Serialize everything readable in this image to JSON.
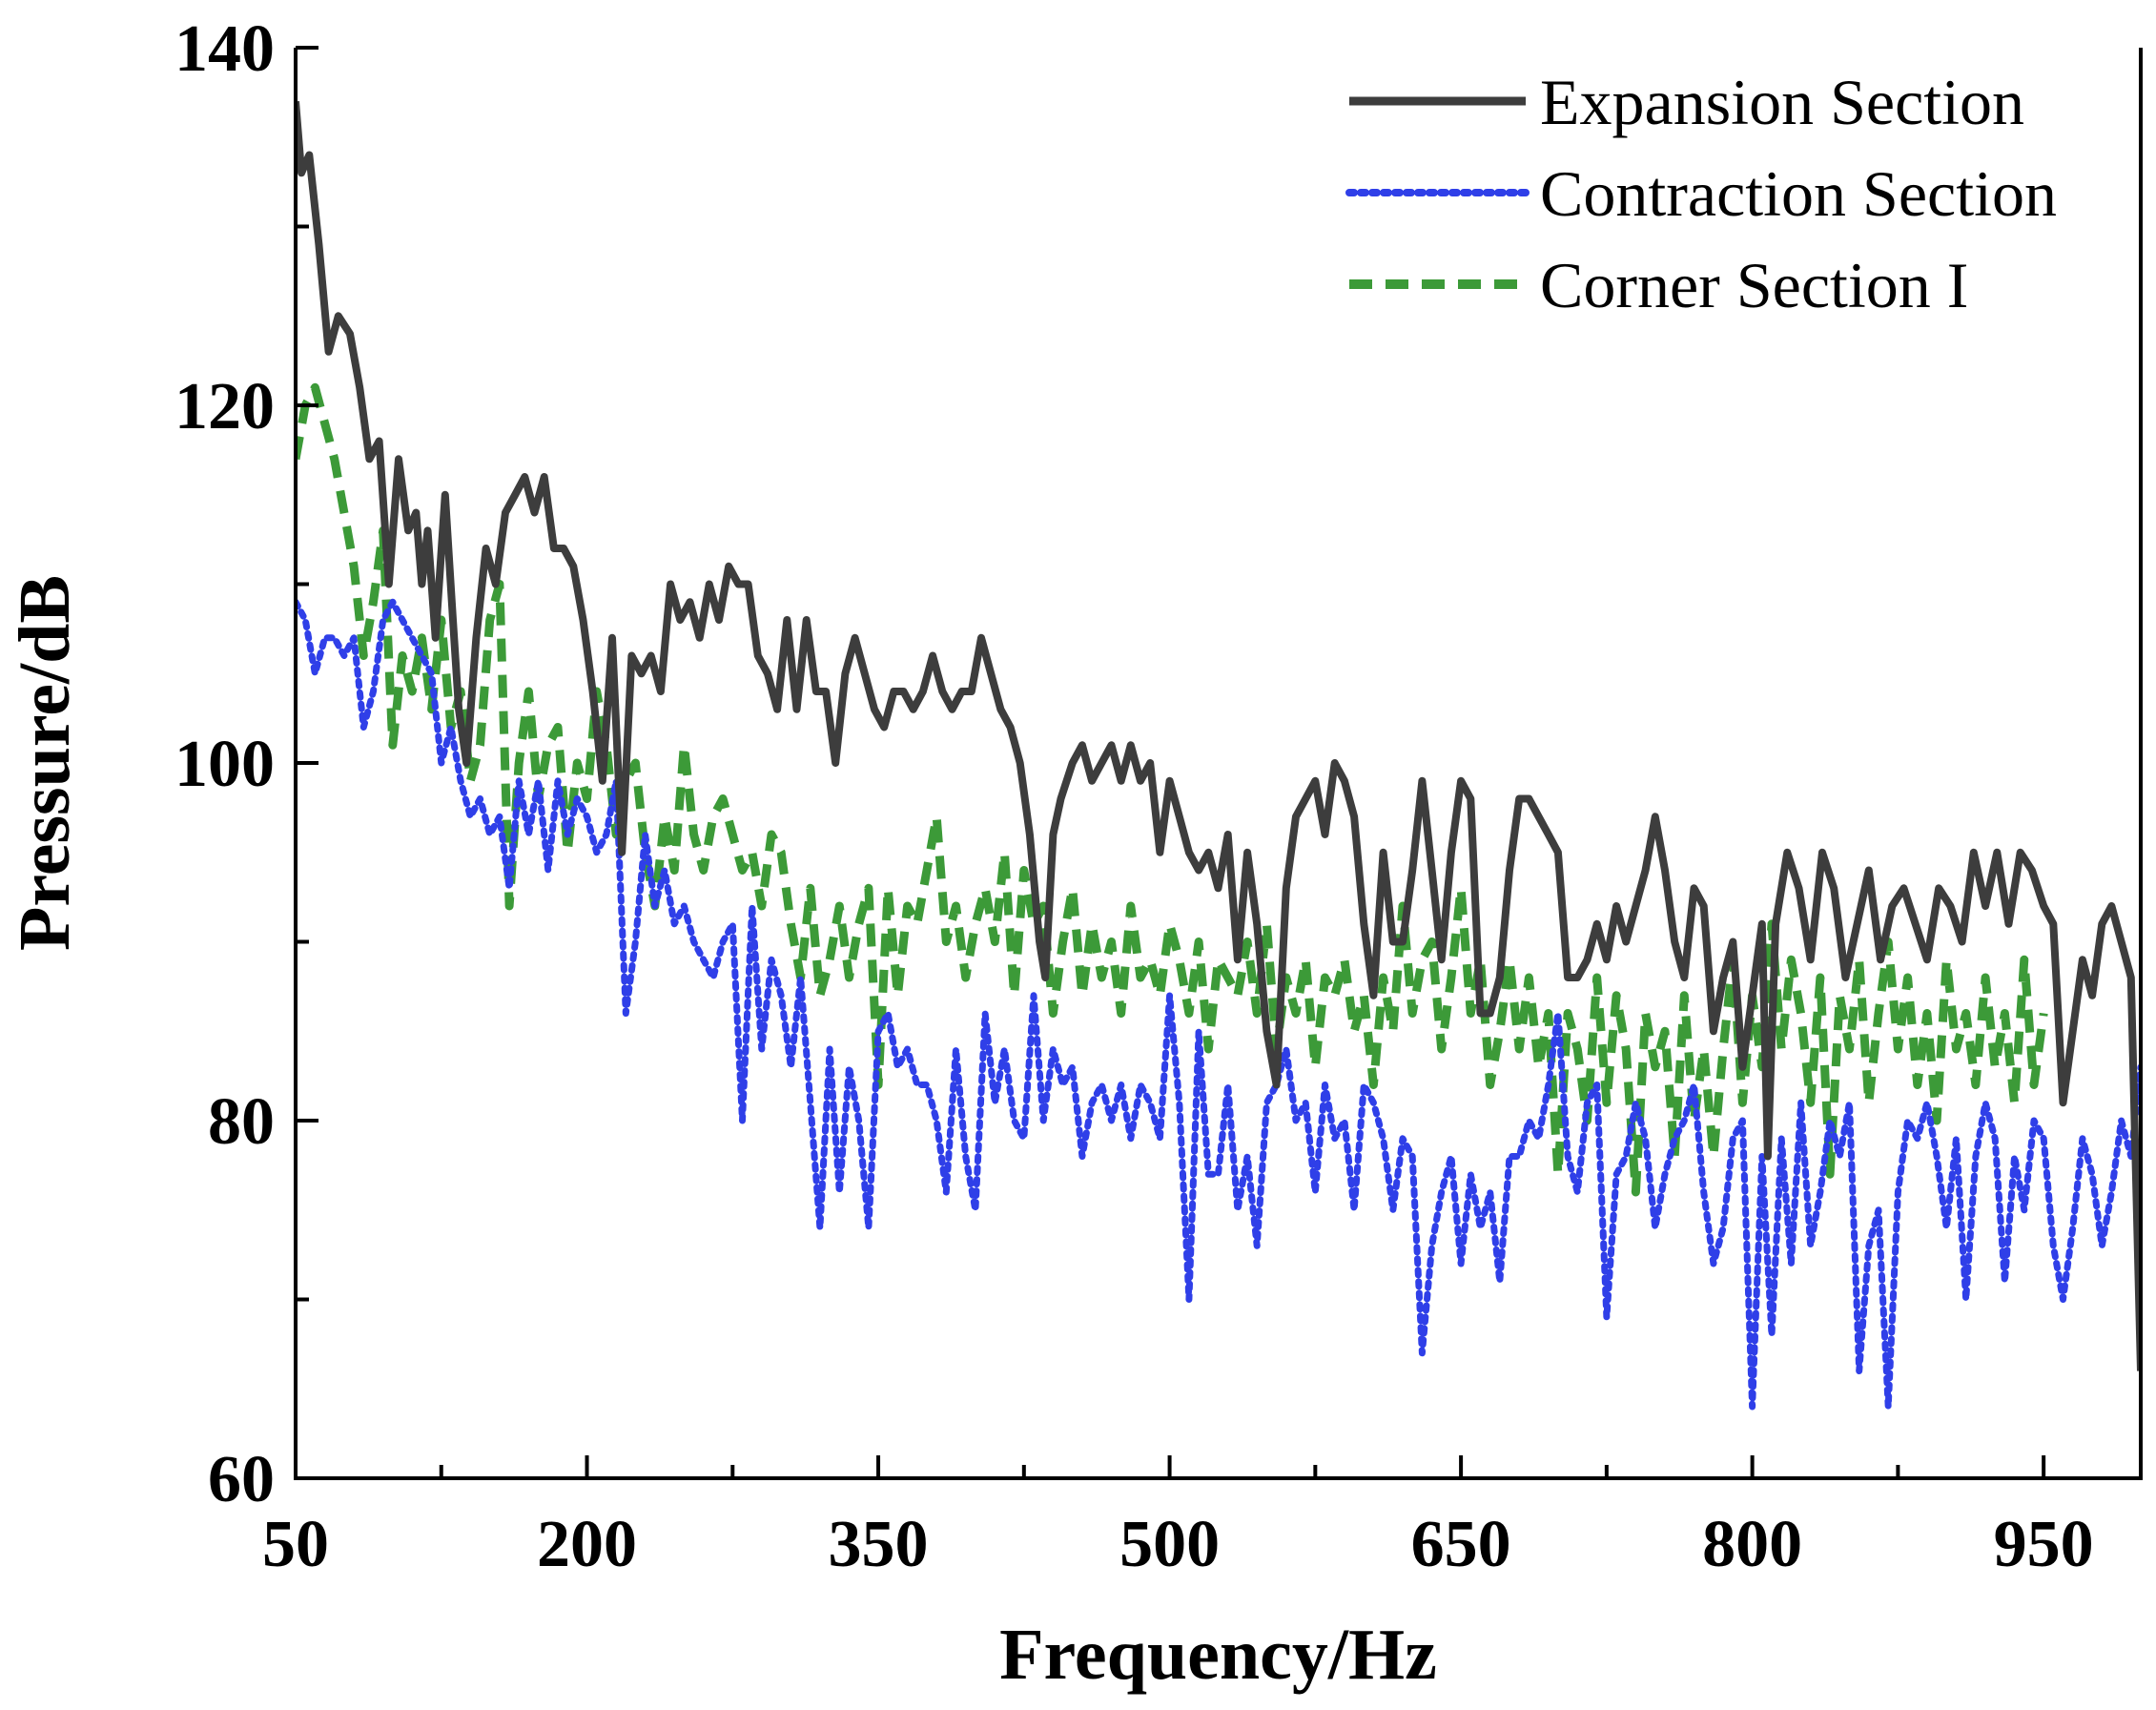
{
  "chart_data": {
    "type": "line",
    "title": "",
    "xlabel": "Frequency/Hz",
    "ylabel": "Pressure/dB",
    "xlim": [
      50,
      1000
    ],
    "ylim": [
      60,
      140
    ],
    "x_ticks": [
      50,
      200,
      350,
      500,
      650,
      800,
      950
    ],
    "x_minor_ticks": [
      125,
      275,
      425,
      575,
      725,
      875
    ],
    "y_ticks": [
      60,
      80,
      100,
      120,
      140
    ],
    "y_minor_ticks": [
      70,
      90,
      110,
      130
    ],
    "grid": false,
    "legend_position": "top-right",
    "series": [
      {
        "name": "Expansion Section",
        "color": "#3d3d3d",
        "style": "solid",
        "x": [
          50,
          53,
          57,
          62,
          67,
          72,
          78,
          83,
          88,
          93,
          98,
          103,
          108,
          112,
          115,
          118,
          122,
          127,
          131,
          134,
          138,
          143,
          148,
          153,
          158,
          163,
          168,
          173,
          178,
          183,
          188,
          193,
          198,
          203,
          208,
          213,
          218,
          223,
          228,
          233,
          238,
          243,
          248,
          253,
          258,
          263,
          268,
          273,
          278,
          283,
          288,
          293,
          298,
          303,
          308,
          313,
          318,
          323,
          328,
          333,
          338,
          343,
          348,
          353,
          358,
          363,
          368,
          373,
          378,
          383,
          388,
          393,
          398,
          403,
          408,
          413,
          418,
          423,
          428,
          433,
          436,
          440,
          444,
          450,
          455,
          460,
          465,
          470,
          475,
          480,
          485,
          490,
          495,
          500,
          505,
          510,
          515,
          520,
          525,
          530,
          535,
          540,
          545,
          550,
          555,
          560,
          565,
          570,
          575,
          580,
          585,
          590,
          595,
          600,
          605,
          610,
          615,
          620,
          625,
          630,
          635,
          640,
          645,
          650,
          655,
          660,
          665,
          670,
          675,
          680,
          685,
          690,
          695,
          700,
          705,
          710,
          715,
          720,
          725,
          730,
          735,
          740,
          745,
          750,
          755,
          760,
          765,
          770,
          775,
          780,
          785,
          790,
          795,
          800,
          805,
          808,
          812,
          818,
          824,
          830,
          836,
          842,
          848,
          854,
          860,
          866,
          872,
          878,
          884,
          890,
          896,
          902,
          908,
          914,
          920,
          926,
          932,
          938,
          944,
          950,
          955,
          960,
          965,
          970,
          975,
          980,
          985,
          990,
          995,
          1000
        ],
        "values": [
          137,
          133,
          134,
          129,
          123,
          125,
          124,
          121,
          117,
          118,
          110,
          117,
          113,
          114,
          110,
          113,
          107,
          115,
          108,
          103,
          100,
          107,
          112,
          110,
          114,
          115,
          116,
          114,
          116,
          112,
          112,
          111,
          108,
          104,
          99,
          107,
          95,
          106,
          105,
          106,
          104,
          110,
          108,
          109,
          107,
          110,
          108,
          111,
          110,
          110,
          106,
          105,
          103,
          108,
          103,
          108,
          104,
          104,
          100,
          105,
          107,
          105,
          103,
          102,
          104,
          104,
          103,
          104,
          106,
          104,
          103,
          104,
          104,
          107,
          105,
          103,
          102,
          100,
          96,
          90,
          88,
          96,
          98,
          100,
          101,
          99,
          100,
          101,
          99,
          101,
          99,
          100,
          95,
          99,
          97,
          95,
          94,
          95,
          93,
          96,
          89,
          95,
          91,
          85,
          82,
          93,
          97,
          98,
          99,
          96,
          100,
          99,
          97,
          91,
          87,
          95,
          90,
          90,
          94,
          99,
          94,
          89,
          95,
          99,
          98,
          86,
          86,
          88,
          94,
          98,
          98,
          97,
          96,
          95,
          88,
          88,
          89,
          91,
          89,
          92,
          90,
          92,
          94,
          97,
          94,
          90,
          88,
          93,
          92,
          85,
          88,
          90,
          83,
          87,
          91,
          78,
          91,
          95,
          93,
          89,
          95,
          93,
          88,
          91,
          94,
          89,
          92,
          93,
          91,
          89,
          93,
          92,
          90,
          95,
          92,
          95,
          91,
          95,
          94,
          92,
          91,
          81,
          85,
          89,
          87,
          91,
          92,
          90,
          88,
          66
        ]
      },
      {
        "name": "Contraction Section",
        "color": "#2f3fe8",
        "style": "dotted",
        "x": [
          50,
          55,
          60,
          65,
          70,
          75,
          80,
          85,
          90,
          95,
          100,
          105,
          110,
          115,
          120,
          125,
          130,
          135,
          140,
          145,
          150,
          155,
          160,
          165,
          170,
          175,
          180,
          185,
          190,
          195,
          200,
          205,
          210,
          215,
          220,
          225,
          230,
          235,
          240,
          245,
          250,
          255,
          260,
          265,
          270,
          275,
          280,
          285,
          290,
          295,
          300,
          305,
          310,
          315,
          320,
          325,
          330,
          335,
          340,
          345,
          350,
          355,
          360,
          365,
          370,
          375,
          380,
          385,
          390,
          395,
          400,
          405,
          410,
          415,
          420,
          425,
          430,
          435,
          440,
          445,
          450,
          455,
          460,
          465,
          470,
          475,
          480,
          485,
          490,
          495,
          500,
          505,
          510,
          515,
          520,
          525,
          530,
          535,
          540,
          545,
          550,
          555,
          560,
          565,
          570,
          575,
          580,
          585,
          590,
          595,
          600,
          605,
          610,
          615,
          620,
          625,
          630,
          635,
          640,
          645,
          650,
          655,
          660,
          665,
          670,
          675,
          680,
          685,
          690,
          695,
          700,
          705,
          710,
          715,
          720,
          725,
          730,
          735,
          740,
          745,
          750,
          755,
          760,
          765,
          770,
          775,
          780,
          785,
          790,
          795,
          800,
          805,
          810,
          815,
          820,
          825,
          830,
          835,
          840,
          845,
          850,
          855,
          860,
          865,
          870,
          875,
          880,
          885,
          890,
          895,
          900,
          905,
          910,
          915,
          920,
          925,
          930,
          935,
          940,
          945,
          950,
          955,
          960,
          965,
          970,
          975,
          980,
          985,
          990,
          995,
          1000
        ],
        "values": [
          109,
          108,
          105,
          107,
          107,
          106,
          107,
          102,
          104,
          108,
          109,
          108,
          107,
          106,
          105,
          100,
          102,
          99,
          97,
          98,
          96,
          97,
          93,
          99,
          96,
          99,
          94,
          99,
          96,
          98,
          97,
          95,
          96,
          99,
          86,
          90,
          96,
          92,
          94,
          91,
          92,
          90,
          89,
          88,
          90,
          91,
          80,
          92,
          84,
          89,
          87,
          83,
          88,
          81,
          74,
          84,
          76,
          83,
          80,
          74,
          85,
          86,
          83,
          84,
          82,
          82,
          80,
          76,
          84,
          78,
          75,
          86,
          81,
          84,
          80,
          79,
          87,
          80,
          84,
          82,
          83,
          78,
          81,
          82,
          80,
          82,
          79,
          82,
          81,
          79,
          87,
          81,
          70,
          85,
          77,
          77,
          82,
          75,
          78,
          73,
          81,
          82,
          84,
          80,
          81,
          76,
          82,
          79,
          80,
          75,
          82,
          81,
          79,
          75,
          79,
          78,
          67,
          73,
          76,
          78,
          72,
          77,
          74,
          76,
          71,
          78,
          78,
          80,
          79,
          82,
          86,
          78,
          76,
          81,
          82,
          69,
          77,
          78,
          81,
          79,
          74,
          77,
          79,
          80,
          82,
          76,
          72,
          74,
          79,
          80,
          64,
          78,
          68,
          79,
          72,
          81,
          73,
          76,
          80,
          78,
          81,
          66,
          73,
          75,
          64,
          76,
          80,
          79,
          81,
          78,
          74,
          79,
          70,
          78,
          81,
          79,
          71,
          78,
          75,
          80,
          79,
          73,
          70,
          74,
          79,
          77,
          73,
          76,
          80,
          78,
          83
        ]
      },
      {
        "name": "Corner Section I",
        "color": "#3c9a38",
        "style": "dashed",
        "x": [
          50,
          55,
          60,
          65,
          70,
          75,
          80,
          85,
          90,
          95,
          100,
          105,
          110,
          115,
          120,
          125,
          130,
          135,
          140,
          145,
          150,
          155,
          160,
          165,
          170,
          175,
          180,
          185,
          190,
          195,
          200,
          205,
          210,
          215,
          220,
          225,
          230,
          235,
          240,
          245,
          250,
          255,
          260,
          265,
          270,
          275,
          280,
          285,
          290,
          295,
          300,
          305,
          310,
          315,
          320,
          325,
          330,
          335,
          340,
          345,
          350,
          355,
          360,
          365,
          370,
          375,
          380,
          385,
          390,
          395,
          400,
          405,
          410,
          415,
          420,
          425,
          430,
          435,
          440,
          445,
          450,
          455,
          460,
          465,
          470,
          475,
          480,
          485,
          490,
          495,
          500,
          505,
          510,
          515,
          520,
          525,
          530,
          535,
          540,
          545,
          550,
          555,
          560,
          565,
          570,
          575,
          580,
          585,
          590,
          595,
          600,
          605,
          610,
          615,
          620,
          625,
          630,
          635,
          640,
          645,
          650,
          655,
          660,
          665,
          670,
          675,
          680,
          685,
          690,
          695,
          700,
          705,
          710,
          715,
          720,
          725,
          730,
          735,
          740,
          745,
          750,
          755,
          760,
          765,
          770,
          775,
          780,
          785,
          790,
          795,
          800,
          805,
          810,
          815,
          820,
          825,
          830,
          835,
          840,
          845,
          850,
          855,
          860,
          865,
          870,
          875,
          880,
          885,
          890,
          895,
          900,
          905,
          910,
          915,
          920,
          925,
          930,
          935,
          940,
          945,
          950
        ],
        "values": [
          117,
          120,
          121,
          119,
          117,
          114,
          111,
          106,
          109,
          113,
          101,
          106,
          104,
          107,
          103,
          108,
          102,
          104,
          99,
          101,
          108,
          110,
          92,
          100,
          104,
          98,
          101,
          102,
          95,
          100,
          98,
          104,
          101,
          96,
          99,
          100,
          95,
          92,
          97,
          94,
          101,
          96,
          94,
          97,
          98,
          96,
          94,
          95,
          92,
          96,
          95,
          91,
          88,
          93,
          87,
          89,
          92,
          88,
          91,
          93,
          82,
          93,
          87,
          92,
          91,
          94,
          97,
          90,
          92,
          88,
          91,
          93,
          90,
          95,
          87,
          94,
          91,
          92,
          86,
          90,
          93,
          87,
          91,
          88,
          90,
          86,
          92,
          88,
          89,
          87,
          91,
          89,
          86,
          90,
          84,
          89,
          88,
          87,
          90,
          86,
          91,
          84,
          88,
          86,
          89,
          83,
          88,
          87,
          89,
          85,
          87,
          82,
          88,
          85,
          92,
          86,
          89,
          90,
          84,
          88,
          93,
          86,
          89,
          82,
          85,
          89,
          84,
          88,
          83,
          86,
          77,
          86,
          84,
          80,
          88,
          81,
          87,
          84,
          76,
          86,
          83,
          85,
          78,
          87,
          80,
          84,
          78,
          84,
          89,
          81,
          87,
          83,
          91,
          84,
          89,
          86,
          81,
          88,
          77,
          87,
          84,
          89,
          81,
          86,
          90,
          84,
          88,
          82,
          86,
          80,
          89,
          84,
          86,
          82,
          88,
          83,
          86,
          81,
          89,
          82,
          86
        ]
      }
    ]
  }
}
